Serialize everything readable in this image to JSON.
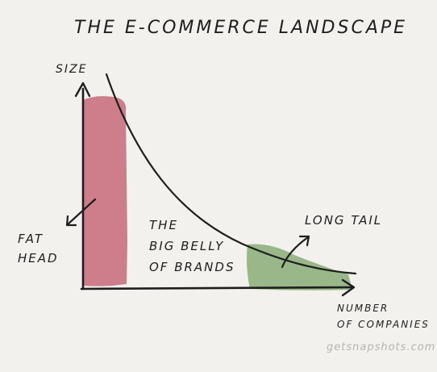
{
  "title": "THE E-COMMERCE LANDSCAPE",
  "axes": {
    "y_label": "SIZE",
    "x_label_lines": [
      "NUMBER",
      "OF COMPANIES"
    ]
  },
  "regions": {
    "fat_head": {
      "label_lines": [
        "FAT",
        "HEAD"
      ],
      "fill_color": "#c56a78"
    },
    "big_belly": {
      "label_lines": [
        "THE",
        "BIG BELLY",
        "OF BRANDS"
      ]
    },
    "long_tail": {
      "label": "LONG TAIL",
      "fill_color": "#8fb07c"
    }
  },
  "credit": "getsnapshots.com",
  "colors": {
    "background": "#f3f1ed",
    "ink": "#1e1e1e",
    "credit_text": "#b7b4ae"
  }
}
